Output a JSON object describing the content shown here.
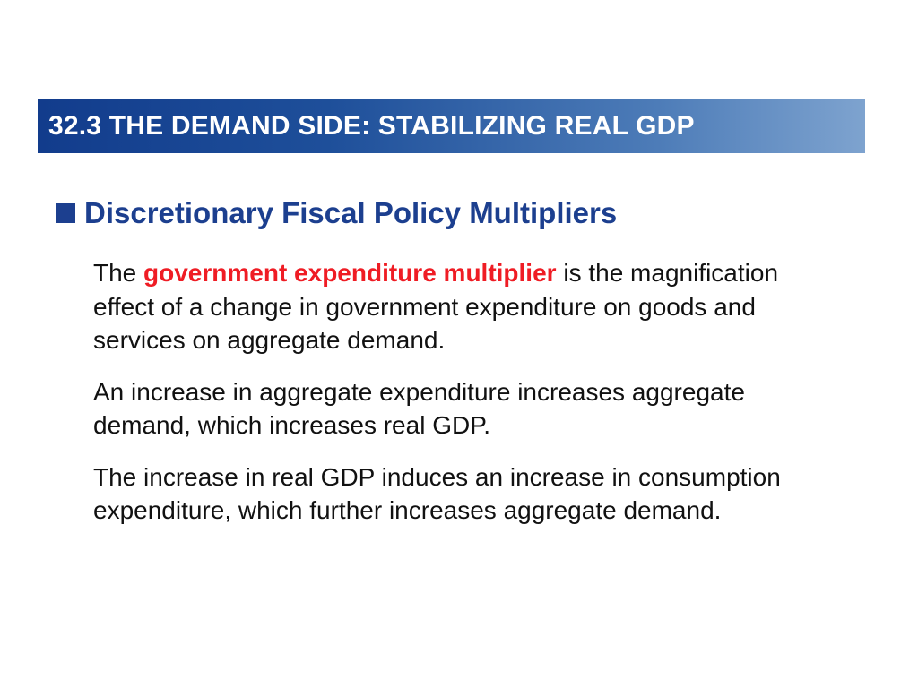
{
  "title": "32.3 THE DEMAND SIDE: STABILIZING REAL GDP",
  "heading": "Discretionary Fiscal Policy Multipliers",
  "bullet_icon": "square-bullet-icon",
  "colors": {
    "title_bar_start": "#123c8c",
    "title_bar_end": "#7ea3cf",
    "heading": "#1c3f8f",
    "emphasis": "#ef1c24",
    "body_text": "#111111"
  },
  "paragraphs": {
    "p1": {
      "before": "The ",
      "term": "government expenditure multiplier",
      "after": " is the magnification effect of a change in government expenditure on goods and services on aggregate demand."
    },
    "p2": "An increase in aggregate expenditure increases aggregate demand, which increases real GDP.",
    "p3": "The increase in real GDP induces an increase in consumption expenditure, which further increases aggregate demand."
  }
}
